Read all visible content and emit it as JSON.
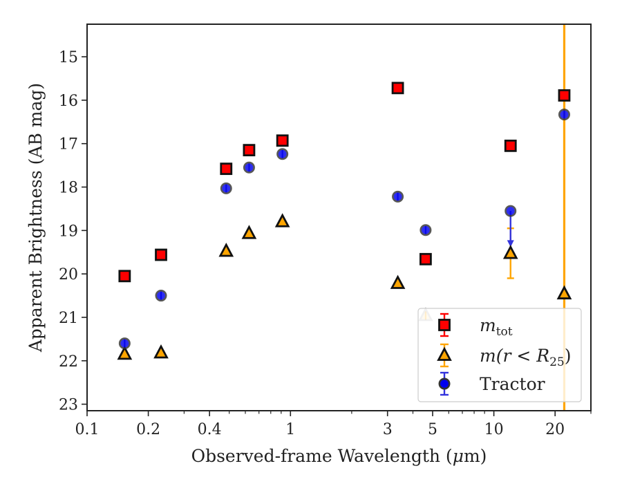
{
  "chart_data": {
    "type": "scatter",
    "xscale": "log",
    "yinverted": true,
    "xlim": [
      0.1,
      30
    ],
    "ylim": [
      23.15,
      14.25
    ],
    "xlabel_parts": [
      "Observed-frame Wavelength (",
      "μ",
      "m)"
    ],
    "ylabel": "Apparent Brightness (AB mag)",
    "x_ticks": [
      {
        "value": 0.1,
        "label": "0.1"
      },
      {
        "value": 0.2,
        "label": "0.2"
      },
      {
        "value": 0.4,
        "label": "0.4"
      },
      {
        "value": 1,
        "label": "1"
      },
      {
        "value": 3,
        "label": "3"
      },
      {
        "value": 5,
        "label": "5"
      },
      {
        "value": 10,
        "label": "10"
      },
      {
        "value": 20,
        "label": "20"
      }
    ],
    "x_minor_ticks": [
      0.3,
      0.5,
      0.6,
      0.7,
      0.8,
      0.9,
      2,
      4,
      6,
      7,
      8,
      9,
      30
    ],
    "y_ticks": [
      {
        "value": 15,
        "label": "15"
      },
      {
        "value": 16,
        "label": "16"
      },
      {
        "value": 17,
        "label": "17"
      },
      {
        "value": 18,
        "label": "18"
      },
      {
        "value": 19,
        "label": "19"
      },
      {
        "value": 20,
        "label": "20"
      },
      {
        "value": 21,
        "label": "21"
      },
      {
        "value": 22,
        "label": "22"
      },
      {
        "value": 23,
        "label": "23"
      }
    ],
    "legend_position": "lower-right",
    "series": [
      {
        "key": "m-tot",
        "label_main": "m",
        "label_sub": "tot",
        "marker": "square",
        "color": "#ff0000",
        "edge": "#111111",
        "errcolor": "#ff0000",
        "points": [
          {
            "x": 0.153,
            "y": 20.05
          },
          {
            "x": 0.231,
            "y": 19.56
          },
          {
            "x": 0.483,
            "y": 17.58
          },
          {
            "x": 0.626,
            "y": 17.15
          },
          {
            "x": 0.913,
            "y": 16.93
          },
          {
            "x": 3.37,
            "y": 15.72
          },
          {
            "x": 4.62,
            "y": 19.66
          },
          {
            "x": 12.08,
            "y": 17.05
          },
          {
            "x": 22.19,
            "y": 15.89
          }
        ]
      },
      {
        "key": "m-r25",
        "label_main": "m(r < R",
        "label_sub": "25",
        "label_tail": ")",
        "marker": "triangle",
        "color": "#ffa500",
        "edge": "#111111",
        "errcolor": "#ffa500",
        "points": [
          {
            "x": 0.153,
            "y": 21.85
          },
          {
            "x": 0.231,
            "y": 21.82
          },
          {
            "x": 0.483,
            "y": 19.48
          },
          {
            "x": 0.626,
            "y": 19.07
          },
          {
            "x": 0.913,
            "y": 18.8
          },
          {
            "x": 3.37,
            "y": 20.22
          },
          {
            "x": 4.62,
            "y": 20.96,
            "faded": true
          },
          {
            "x": 12.08,
            "y": 19.53,
            "err": [
              18.95,
              20.1
            ]
          },
          {
            "x": 22.19,
            "y": 20.46,
            "err": [
              13.0,
              24.0
            ]
          }
        ]
      },
      {
        "key": "tractor",
        "label_main": "Tractor",
        "marker": "circle",
        "color": "#0000ee",
        "edge": "#333333",
        "errcolor": "#3333dd",
        "points": [
          {
            "x": 0.153,
            "y": 21.6
          },
          {
            "x": 0.231,
            "y": 20.5
          },
          {
            "x": 0.483,
            "y": 18.03
          },
          {
            "x": 0.626,
            "y": 17.55
          },
          {
            "x": 0.913,
            "y": 17.24
          },
          {
            "x": 3.37,
            "y": 18.22
          },
          {
            "x": 4.62,
            "y": 18.99
          },
          {
            "x": 12.08,
            "y": 18.55,
            "err": [
              18.55,
              19.35
            ],
            "upperlimit": true
          },
          {
            "x": 22.19,
            "y": 16.33
          }
        ]
      }
    ]
  }
}
